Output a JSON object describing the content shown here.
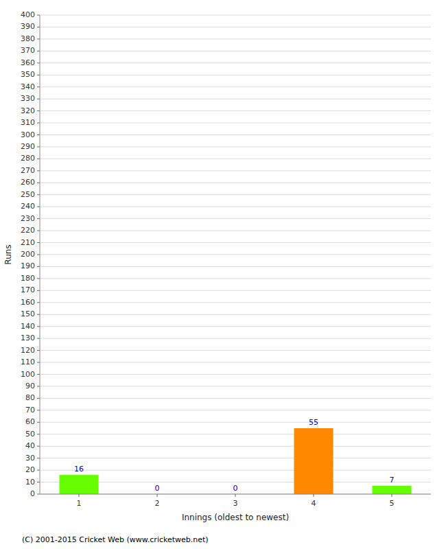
{
  "chart_data": {
    "type": "bar",
    "xlabel": "Innings (oldest to newest)",
    "ylabel": "Runs",
    "categories": [
      1,
      2,
      3,
      4,
      5
    ],
    "values": [
      16,
      0,
      0,
      55,
      7
    ],
    "colors": [
      "#66ff00",
      "#66ff00",
      "#66ff00",
      "#ff8800",
      "#66ff00"
    ],
    "ylim": [
      0,
      400
    ],
    "yticks": [
      0,
      10,
      20,
      30,
      40,
      50,
      60,
      70,
      80,
      90,
      100,
      110,
      120,
      130,
      140,
      150,
      160,
      170,
      180,
      190,
      200,
      210,
      220,
      230,
      240,
      250,
      260,
      270,
      280,
      290,
      300,
      310,
      320,
      330,
      340,
      350,
      360,
      370,
      380,
      390,
      400
    ],
    "grid": true,
    "data_labels": true,
    "annotations": [
      "(C) 2001-2015 Cricket Web (www.cricketweb.net)"
    ]
  }
}
